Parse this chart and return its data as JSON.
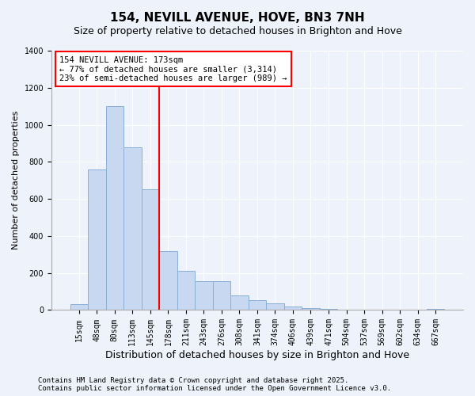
{
  "title": "154, NEVILL AVENUE, HOVE, BN3 7NH",
  "subtitle": "Size of property relative to detached houses in Brighton and Hove",
  "xlabel": "Distribution of detached houses by size in Brighton and Hove",
  "ylabel": "Number of detached properties",
  "categories": [
    "15sqm",
    "48sqm",
    "80sqm",
    "113sqm",
    "145sqm",
    "178sqm",
    "211sqm",
    "243sqm",
    "276sqm",
    "308sqm",
    "341sqm",
    "374sqm",
    "406sqm",
    "439sqm",
    "471sqm",
    "504sqm",
    "537sqm",
    "569sqm",
    "602sqm",
    "634sqm",
    "667sqm"
  ],
  "values": [
    30,
    760,
    1100,
    880,
    650,
    320,
    210,
    155,
    155,
    80,
    55,
    35,
    20,
    10,
    5,
    3,
    2,
    1,
    1,
    0,
    5
  ],
  "bar_color": "#c8d8f0",
  "bar_edge_color": "#8ab0d8",
  "vline_index": 5,
  "vline_color": "red",
  "annotation_text_line1": "154 NEVILL AVENUE: 173sqm",
  "annotation_text_line2": "← 77% of detached houses are smaller (3,314)",
  "annotation_text_line3": "23% of semi-detached houses are larger (989) →",
  "annotation_box_color": "white",
  "annotation_box_edge_color": "red",
  "ylim": [
    0,
    1400
  ],
  "yticks": [
    0,
    200,
    400,
    600,
    800,
    1000,
    1200,
    1400
  ],
  "background_color": "#eef2fa",
  "plot_bg_color": "#eef2fa",
  "footer_line1": "Contains HM Land Registry data © Crown copyright and database right 2025.",
  "footer_line2": "Contains public sector information licensed under the Open Government Licence v3.0.",
  "title_fontsize": 11,
  "subtitle_fontsize": 9,
  "xlabel_fontsize": 9,
  "ylabel_fontsize": 8,
  "annotation_fontsize": 7.5,
  "footer_fontsize": 6.5,
  "tick_fontsize": 7
}
